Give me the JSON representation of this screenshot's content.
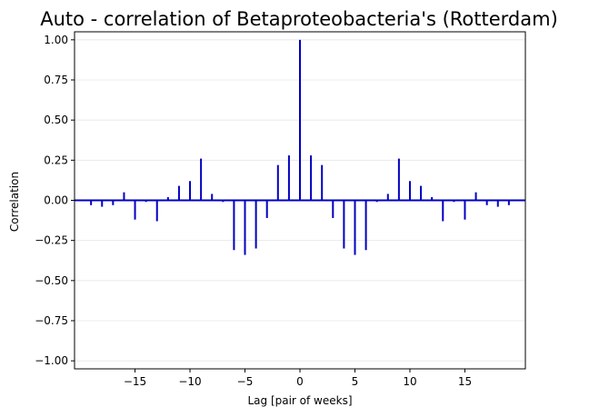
{
  "chart_data": {
    "type": "bar",
    "title": "Auto - correlation of Betaproteobacteria's (Rotterdam)",
    "xlabel": "Lag [pair of weeks]",
    "ylabel": "Correlation",
    "xlim": [
      -20.5,
      20.5
    ],
    "ylim": [
      -1.05,
      1.05
    ],
    "xticks": [
      -15,
      -10,
      -5,
      0,
      5,
      10,
      15
    ],
    "xtick_labels": [
      "−15",
      "−10",
      "−5",
      "0",
      "5",
      "10",
      "15"
    ],
    "yticks": [
      1.0,
      0.75,
      0.5,
      0.25,
      0.0,
      -0.25,
      -0.5,
      -0.75,
      -1.0
    ],
    "ytick_labels": [
      "1.00",
      "0.75",
      "0.50",
      "0.25",
      "0.00",
      "−0.25",
      "−0.50",
      "−0.75",
      "−1.00"
    ],
    "grid": "horizontal",
    "series": [
      {
        "color": "#0000c0",
        "x": [
          -19,
          -18,
          -17,
          -16,
          -15,
          -14,
          -13,
          -12,
          -11,
          -10,
          -9,
          -8,
          -7,
          -6,
          -5,
          -4,
          -3,
          -2,
          -1,
          0,
          1,
          2,
          3,
          4,
          5,
          6,
          7,
          8,
          9,
          10,
          11,
          12,
          13,
          14,
          15,
          16,
          17,
          18,
          19
        ],
        "values": [
          -0.03,
          -0.04,
          -0.03,
          0.05,
          -0.12,
          -0.01,
          -0.13,
          0.02,
          0.09,
          0.12,
          0.26,
          0.04,
          -0.01,
          -0.31,
          -0.34,
          -0.3,
          -0.11,
          0.22,
          0.28,
          1.0,
          0.28,
          0.22,
          -0.11,
          -0.3,
          -0.34,
          -0.31,
          -0.01,
          0.04,
          0.26,
          0.12,
          0.09,
          0.02,
          -0.13,
          -0.01,
          -0.12,
          0.05,
          -0.03,
          -0.04,
          -0.03
        ]
      }
    ]
  }
}
